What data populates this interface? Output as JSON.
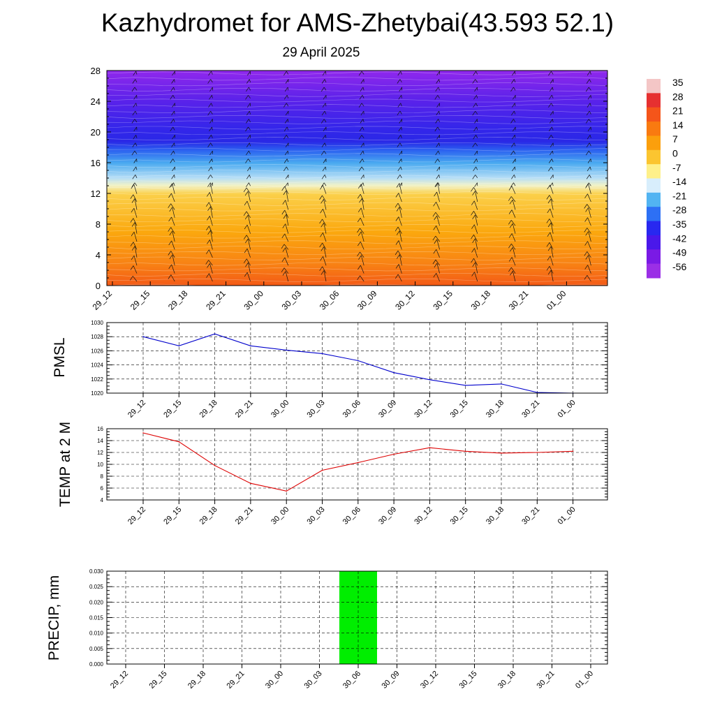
{
  "header": {
    "title": "Kazhydromet for AMS-Zhetybai(43.593 52.1)",
    "subtitle": "29 April 2025"
  },
  "chart_data": [
    {
      "type": "heatmap",
      "title": "",
      "xlabel": "",
      "ylabel": "",
      "x_ticks": [
        "29_12",
        "29_15",
        "29_18",
        "29_21",
        "30_00",
        "30_03",
        "30_06",
        "30_09",
        "30_12",
        "30_15",
        "30_18",
        "30_21",
        "01_00"
      ],
      "y_ticks": [
        "0",
        "4",
        "8",
        "12",
        "16",
        "20",
        "24",
        "28"
      ],
      "ylim": [
        0,
        28
      ],
      "colorbar": {
        "labels": [
          "35",
          "28",
          "21",
          "14",
          "7",
          "0",
          "-7",
          "-14",
          "-21",
          "-28",
          "-35",
          "-42",
          "-49",
          "-56"
        ],
        "colors": [
          "#f4c6c6",
          "#e63030",
          "#f5551a",
          "#f97a10",
          "#fb9f0c",
          "#fbc530",
          "#fef08a",
          "#d8eefc",
          "#52b4f2",
          "#2d70f5",
          "#2828f0",
          "#4a18ea",
          "#7a1ae5",
          "#9b2fe6"
        ]
      },
      "overlay": "wind barbs"
    },
    {
      "type": "line",
      "ylabel": "PMSL",
      "categories": [
        "29_12",
        "29_15",
        "29_18",
        "29_21",
        "30_00",
        "30_03",
        "30_06",
        "30_09",
        "30_12",
        "30_15",
        "30_18",
        "30_21",
        "01_00"
      ],
      "y_ticks": [
        "1020",
        "1022",
        "1024",
        "1026",
        "1028",
        "1030"
      ],
      "ylim": [
        1020,
        1030
      ],
      "grid": true,
      "series": [
        {
          "color": "#0000cc",
          "values": [
            1028.0,
            1026.7,
            1028.4,
            1026.7,
            1026.1,
            1025.6,
            1024.6,
            1022.9,
            1021.9,
            1021.1,
            1021.3,
            1020.1,
            1020.0
          ]
        }
      ]
    },
    {
      "type": "line",
      "ylabel": "TEMP at 2 M",
      "categories": [
        "29_12",
        "29_15",
        "29_18",
        "29_21",
        "30_00",
        "30_03",
        "30_06",
        "30_09",
        "30_12",
        "30_15",
        "30_18",
        "30_21",
        "01_00"
      ],
      "y_ticks": [
        "4",
        "6",
        "8",
        "10",
        "12",
        "14",
        "16"
      ],
      "ylim": [
        4,
        16
      ],
      "grid": true,
      "series": [
        {
          "color": "#dd0000",
          "values": [
            15.3,
            13.8,
            9.8,
            6.8,
            5.5,
            9.0,
            10.3,
            11.7,
            12.8,
            12.2,
            11.9,
            12.0,
            12.2
          ]
        }
      ]
    },
    {
      "type": "bar",
      "ylabel": "PRECIP, mm",
      "categories": [
        "29_12",
        "29_15",
        "29_18",
        "29_21",
        "30_00",
        "30_03",
        "30_06",
        "30_09",
        "30_12",
        "30_15",
        "30_18",
        "30_21",
        "01_00"
      ],
      "y_ticks": [
        "0.000",
        "0.005",
        "0.010",
        "0.015",
        "0.020",
        "0.025",
        "0.030"
      ],
      "ylim": [
        0,
        0.03
      ],
      "grid": true,
      "series": [
        {
          "color": "#00ee00",
          "values": [
            0,
            0,
            0,
            0,
            0,
            0,
            0.03,
            0,
            0,
            0,
            0,
            0,
            0
          ]
        }
      ]
    }
  ]
}
